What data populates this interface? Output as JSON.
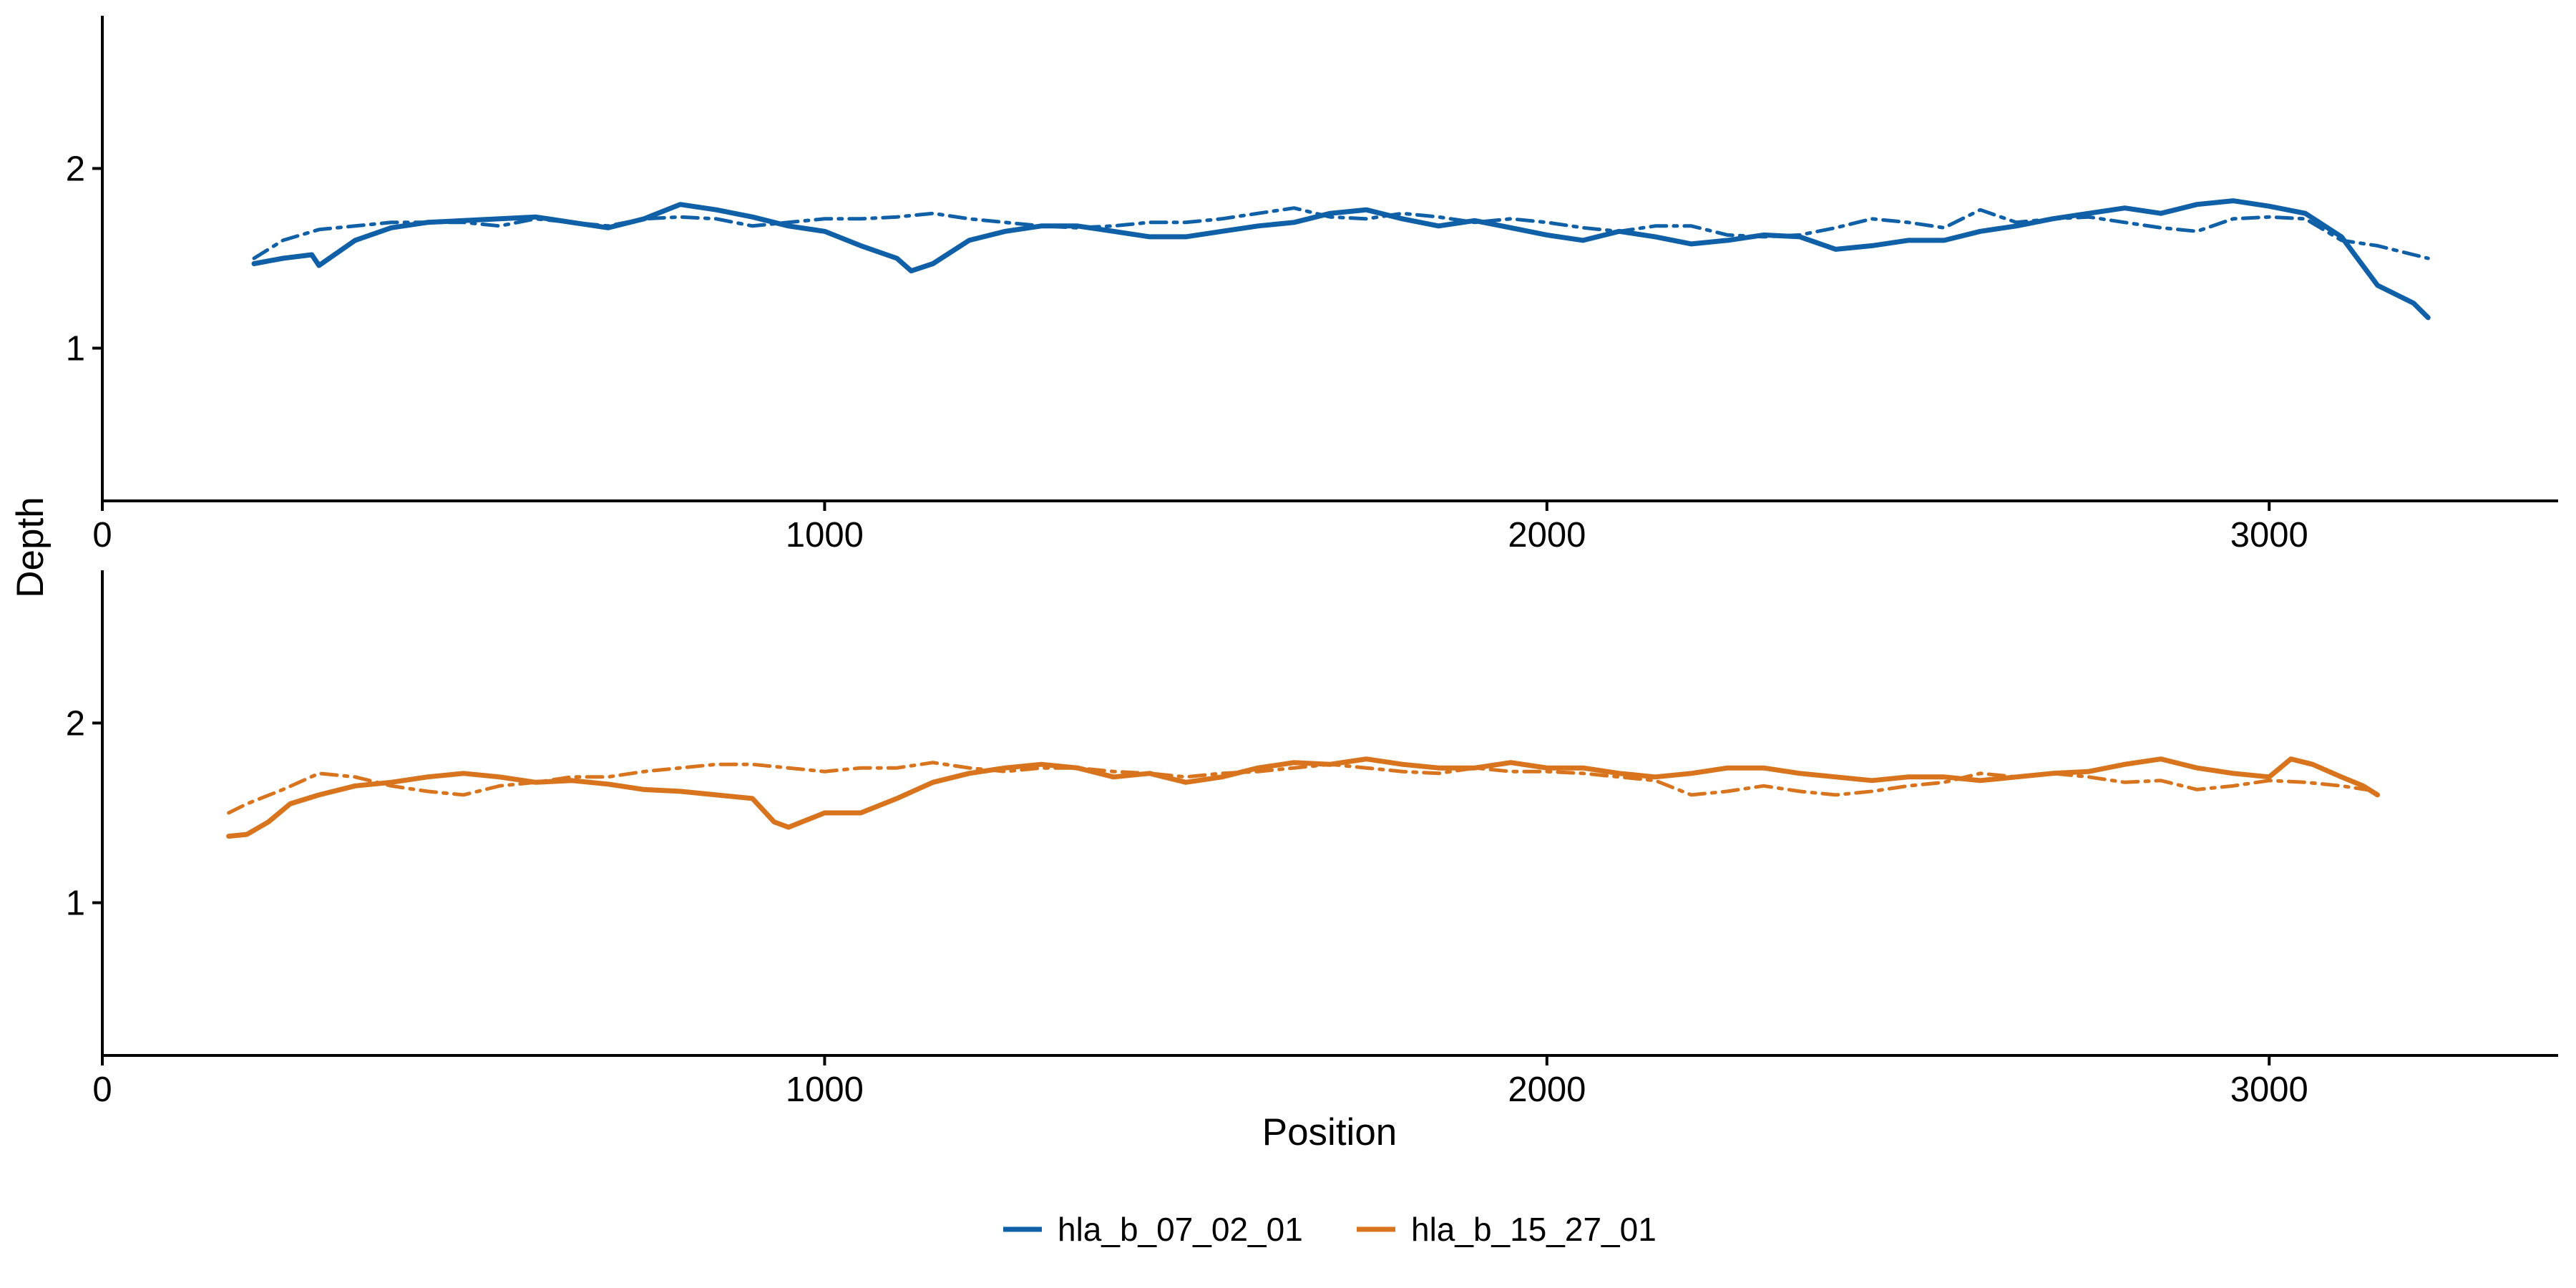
{
  "chart_data": {
    "type": "line",
    "xlabel": "Position",
    "ylabel": "Depth",
    "xlim": [
      0,
      3400
    ],
    "ylim": [
      0.15,
      2.85
    ],
    "x_ticks": [
      0,
      1000,
      2000,
      3000
    ],
    "y_ticks": [
      1,
      2
    ],
    "grid": false,
    "legend_position": "bottom-center",
    "legend": [
      {
        "name": "hla_b_07_02_01",
        "color": "#1060A8"
      },
      {
        "name": "hla_b_15_27_01",
        "color": "#D8741E"
      }
    ],
    "panels": [
      {
        "series_color": "#1060A8",
        "lines": [
          {
            "style": "solid",
            "x": [
              210,
              250,
              290,
              300,
              350,
              400,
              450,
              500,
              550,
              600,
              650,
              700,
              750,
              800,
              850,
              900,
              950,
              1000,
              1050,
              1100,
              1120,
              1150,
              1200,
              1250,
              1300,
              1350,
              1400,
              1450,
              1500,
              1550,
              1600,
              1650,
              1700,
              1750,
              1800,
              1850,
              1900,
              1950,
              2000,
              2050,
              2100,
              2150,
              2200,
              2250,
              2300,
              2350,
              2400,
              2450,
              2500,
              2550,
              2600,
              2650,
              2700,
              2750,
              2800,
              2850,
              2900,
              2950,
              3000,
              3050,
              3100,
              3150,
              3200,
              3220
            ],
            "y": [
              1.47,
              1.5,
              1.52,
              1.46,
              1.6,
              1.67,
              1.7,
              1.71,
              1.72,
              1.73,
              1.7,
              1.67,
              1.72,
              1.8,
              1.77,
              1.73,
              1.68,
              1.65,
              1.57,
              1.5,
              1.43,
              1.47,
              1.6,
              1.65,
              1.68,
              1.68,
              1.65,
              1.62,
              1.62,
              1.65,
              1.68,
              1.7,
              1.75,
              1.77,
              1.72,
              1.68,
              1.71,
              1.67,
              1.63,
              1.6,
              1.65,
              1.62,
              1.58,
              1.6,
              1.63,
              1.62,
              1.55,
              1.57,
              1.6,
              1.6,
              1.65,
              1.68,
              1.72,
              1.75,
              1.78,
              1.75,
              1.8,
              1.82,
              1.79,
              1.75,
              1.62,
              1.35,
              1.25,
              1.17
            ]
          },
          {
            "style": "dashed",
            "x": [
              210,
              250,
              300,
              350,
              400,
              450,
              500,
              550,
              600,
              650,
              700,
              750,
              800,
              850,
              900,
              950,
              1000,
              1050,
              1100,
              1150,
              1200,
              1250,
              1300,
              1350,
              1400,
              1450,
              1500,
              1550,
              1600,
              1650,
              1700,
              1750,
              1800,
              1850,
              1900,
              1950,
              2000,
              2050,
              2100,
              2150,
              2200,
              2250,
              2300,
              2350,
              2400,
              2450,
              2500,
              2550,
              2600,
              2650,
              2700,
              2750,
              2800,
              2850,
              2900,
              2950,
              3000,
              3050,
              3100,
              3150,
              3200,
              3220
            ],
            "y": [
              1.5,
              1.6,
              1.66,
              1.68,
              1.7,
              1.7,
              1.7,
              1.68,
              1.72,
              1.7,
              1.68,
              1.72,
              1.73,
              1.72,
              1.68,
              1.7,
              1.72,
              1.72,
              1.73,
              1.75,
              1.72,
              1.7,
              1.68,
              1.67,
              1.68,
              1.7,
              1.7,
              1.72,
              1.75,
              1.78,
              1.73,
              1.72,
              1.75,
              1.73,
              1.7,
              1.72,
              1.7,
              1.67,
              1.65,
              1.68,
              1.68,
              1.63,
              1.62,
              1.63,
              1.67,
              1.72,
              1.7,
              1.67,
              1.77,
              1.7,
              1.72,
              1.73,
              1.7,
              1.67,
              1.65,
              1.72,
              1.73,
              1.72,
              1.6,
              1.57,
              1.52,
              1.5
            ]
          }
        ]
      },
      {
        "series_color": "#D8741E",
        "lines": [
          {
            "style": "solid",
            "x": [
              175,
              200,
              230,
              260,
              300,
              350,
              400,
              450,
              500,
              550,
              600,
              650,
              700,
              750,
              800,
              850,
              900,
              930,
              950,
              1000,
              1050,
              1100,
              1150,
              1200,
              1250,
              1300,
              1350,
              1400,
              1450,
              1500,
              1550,
              1600,
              1650,
              1700,
              1750,
              1800,
              1850,
              1900,
              1950,
              2000,
              2050,
              2100,
              2150,
              2200,
              2250,
              2300,
              2350,
              2400,
              2450,
              2500,
              2550,
              2600,
              2650,
              2700,
              2750,
              2800,
              2850,
              2900,
              2950,
              3000,
              3030,
              3060,
              3100,
              3130,
              3150
            ],
            "y": [
              1.37,
              1.38,
              1.45,
              1.55,
              1.6,
              1.65,
              1.67,
              1.7,
              1.72,
              1.7,
              1.67,
              1.68,
              1.66,
              1.63,
              1.62,
              1.6,
              1.58,
              1.45,
              1.42,
              1.5,
              1.5,
              1.58,
              1.67,
              1.72,
              1.75,
              1.77,
              1.75,
              1.7,
              1.72,
              1.67,
              1.7,
              1.75,
              1.78,
              1.77,
              1.8,
              1.77,
              1.75,
              1.75,
              1.78,
              1.75,
              1.75,
              1.72,
              1.7,
              1.72,
              1.75,
              1.75,
              1.72,
              1.7,
              1.68,
              1.7,
              1.7,
              1.68,
              1.7,
              1.72,
              1.73,
              1.77,
              1.8,
              1.75,
              1.72,
              1.7,
              1.8,
              1.77,
              1.7,
              1.65,
              1.6
            ]
          },
          {
            "style": "dashed",
            "x": [
              175,
              200,
              250,
              300,
              350,
              400,
              450,
              500,
              550,
              600,
              650,
              700,
              750,
              800,
              850,
              900,
              950,
              1000,
              1050,
              1100,
              1150,
              1200,
              1250,
              1300,
              1350,
              1400,
              1450,
              1500,
              1550,
              1600,
              1650,
              1700,
              1750,
              1800,
              1850,
              1900,
              1950,
              2000,
              2050,
              2100,
              2150,
              2200,
              2250,
              2300,
              2350,
              2400,
              2450,
              2500,
              2550,
              2600,
              2650,
              2700,
              2750,
              2800,
              2850,
              2900,
              2950,
              3000,
              3050,
              3100,
              3150
            ],
            "y": [
              1.5,
              1.55,
              1.63,
              1.72,
              1.7,
              1.65,
              1.62,
              1.6,
              1.65,
              1.67,
              1.7,
              1.7,
              1.73,
              1.75,
              1.77,
              1.77,
              1.75,
              1.73,
              1.75,
              1.75,
              1.78,
              1.75,
              1.73,
              1.75,
              1.75,
              1.73,
              1.72,
              1.7,
              1.72,
              1.73,
              1.75,
              1.77,
              1.75,
              1.73,
              1.72,
              1.75,
              1.73,
              1.73,
              1.72,
              1.7,
              1.68,
              1.6,
              1.62,
              1.65,
              1.62,
              1.6,
              1.62,
              1.65,
              1.67,
              1.72,
              1.7,
              1.72,
              1.7,
              1.67,
              1.68,
              1.63,
              1.65,
              1.68,
              1.67,
              1.65,
              1.62
            ]
          }
        ]
      }
    ]
  }
}
